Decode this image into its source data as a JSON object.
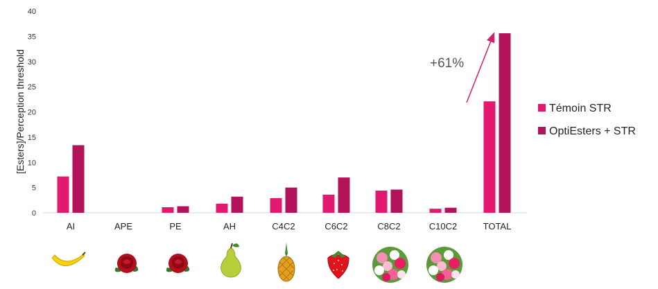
{
  "chart_data": {
    "type": "bar",
    "categories": [
      "AI",
      "APE",
      "PE",
      "AH",
      "C4C2",
      "C6C2",
      "C8C2",
      "C10C2",
      "TOTAL"
    ],
    "series": [
      {
        "name": "Témoin STR",
        "values": [
          7.2,
          0,
          1.1,
          1.8,
          2.9,
          3.6,
          4.4,
          0.8,
          22.1
        ],
        "color": "#e2196e"
      },
      {
        "name": "OptiEsters + STR",
        "values": [
          13.4,
          0,
          1.3,
          3.2,
          5.0,
          7.0,
          4.6,
          1.0,
          35.6
        ],
        "color": "#b3135a"
      }
    ],
    "ylabel": "[Esters]/Perception threshold",
    "xlabel": "",
    "ylim": [
      0,
      40
    ],
    "yticks": [
      0,
      5,
      10,
      15,
      20,
      25,
      30,
      35,
      40
    ],
    "grid": false,
    "legend_position": "right",
    "annotation": {
      "text": "+61%",
      "arrow_color": "#d81b6a"
    },
    "category_icons": [
      "banana-icon",
      "rose-icon",
      "rose-icon",
      "pear-icon",
      "pineapple-icon",
      "strawberry-icon",
      "flower-bouquet-icon",
      "flower-bouquet-icon",
      "none"
    ]
  }
}
